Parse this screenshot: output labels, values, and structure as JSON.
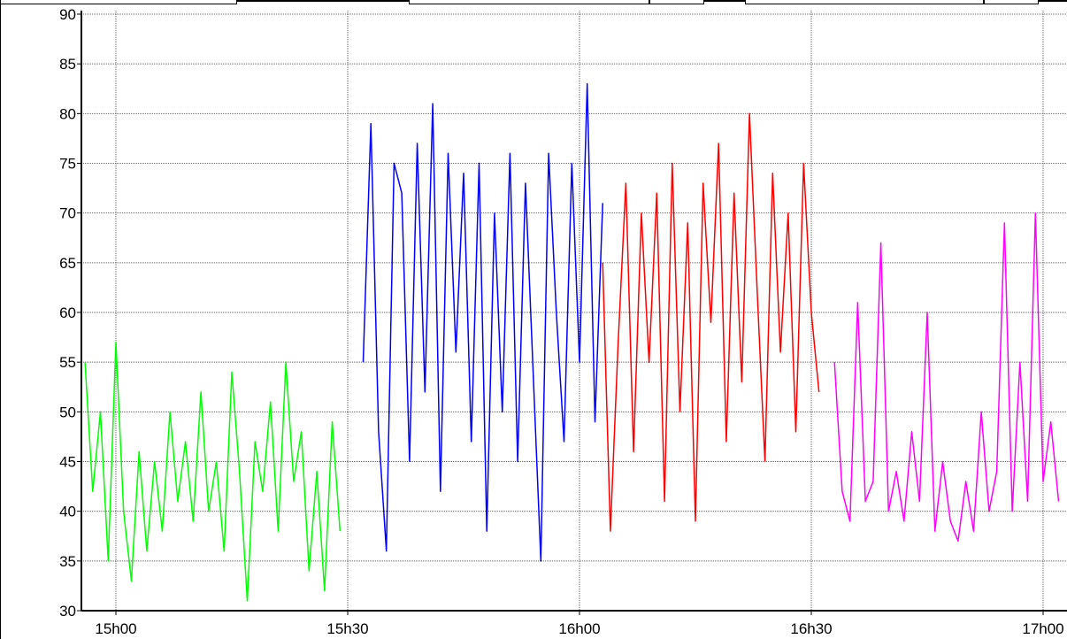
{
  "chart_data": {
    "type": "line",
    "title": "",
    "xlabel": "",
    "ylabel": "",
    "ylim": [
      30,
      90
    ],
    "y_ticks": [
      30,
      35,
      40,
      45,
      50,
      55,
      60,
      65,
      70,
      75,
      80,
      85,
      90
    ],
    "xlim": [
      "14h55",
      "17h00"
    ],
    "x_ticks": [
      {
        "label": "15h00",
        "time": "15:00"
      },
      {
        "label": "15h30",
        "time": "15:30"
      },
      {
        "label": "16h00",
        "time": "16:00"
      },
      {
        "label": "16h30",
        "time": "16:30"
      },
      {
        "label": "17h00",
        "time": "17:00"
      }
    ],
    "grid": true,
    "legend": "none",
    "series": [
      {
        "color": "#00ff00",
        "x": [
          "14:56",
          "14:57",
          "14:58",
          "14:59",
          "15:00",
          "15:01",
          "15:02",
          "15:03",
          "15:04",
          "15:05",
          "15:06",
          "15:07",
          "15:08",
          "15:09",
          "15:10",
          "15:11",
          "15:12",
          "15:13",
          "15:14",
          "15:15",
          "15:16",
          "15:17",
          "15:18",
          "15:19",
          "15:20",
          "15:21",
          "15:22",
          "15:23",
          "15:24",
          "15:25",
          "15:26",
          "15:27",
          "15:28",
          "15:29"
        ],
        "y": [
          55,
          42,
          50,
          35,
          57,
          40,
          33,
          46,
          36,
          45,
          38,
          50,
          41,
          47,
          39,
          52,
          40,
          45,
          36,
          54,
          44,
          31,
          47,
          42,
          51,
          38,
          55,
          43,
          48,
          34,
          44,
          32,
          49,
          38
        ]
      },
      {
        "color": "#0000ff",
        "x": [
          "15:32",
          "15:33",
          "15:34",
          "15:35",
          "15:36",
          "15:37",
          "15:38",
          "15:39",
          "15:40",
          "15:41",
          "15:42",
          "15:43",
          "15:44",
          "15:45",
          "15:46",
          "15:47",
          "15:48",
          "15:49",
          "15:50",
          "15:51",
          "15:52",
          "15:53",
          "15:54",
          "15:55",
          "15:56",
          "15:57",
          "15:58",
          "15:59",
          "16:00",
          "16:01",
          "16:02",
          "16:03"
        ],
        "y": [
          55,
          79,
          48,
          36,
          75,
          72,
          45,
          77,
          52,
          81,
          42,
          76,
          56,
          74,
          47,
          75,
          38,
          70,
          50,
          76,
          45,
          73,
          54,
          35,
          76,
          60,
          47,
          75,
          55,
          83,
          49,
          71
        ]
      },
      {
        "color": "#ff0000",
        "x": [
          "16:03",
          "16:04",
          "16:05",
          "16:06",
          "16:07",
          "16:08",
          "16:09",
          "16:10",
          "16:11",
          "16:12",
          "16:13",
          "16:14",
          "16:15",
          "16:16",
          "16:17",
          "16:18",
          "16:19",
          "16:20",
          "16:21",
          "16:22",
          "16:23",
          "16:24",
          "16:25",
          "16:26",
          "16:27",
          "16:28",
          "16:29",
          "16:30",
          "16:31"
        ],
        "y": [
          65,
          38,
          57,
          73,
          46,
          70,
          55,
          72,
          41,
          75,
          50,
          69,
          39,
          73,
          59,
          77,
          47,
          72,
          53,
          80,
          62,
          45,
          74,
          56,
          70,
          48,
          75,
          60,
          52
        ]
      },
      {
        "color": "#ff00ff",
        "x": [
          "16:33",
          "16:34",
          "16:35",
          "16:36",
          "16:37",
          "16:38",
          "16:39",
          "16:40",
          "16:41",
          "16:42",
          "16:43",
          "16:44",
          "16:45",
          "16:46",
          "16:47",
          "16:48",
          "16:49",
          "16:50",
          "16:51",
          "16:52",
          "16:53",
          "16:54",
          "16:55",
          "16:56",
          "16:57",
          "16:58",
          "16:59",
          "17:00",
          "17:01",
          "17:02"
        ],
        "y": [
          55,
          42,
          39,
          61,
          41,
          43,
          67,
          40,
          44,
          39,
          48,
          41,
          60,
          38,
          45,
          39,
          37,
          43,
          38,
          50,
          40,
          44,
          69,
          40,
          55,
          41,
          70,
          43,
          49,
          41
        ]
      }
    ]
  }
}
